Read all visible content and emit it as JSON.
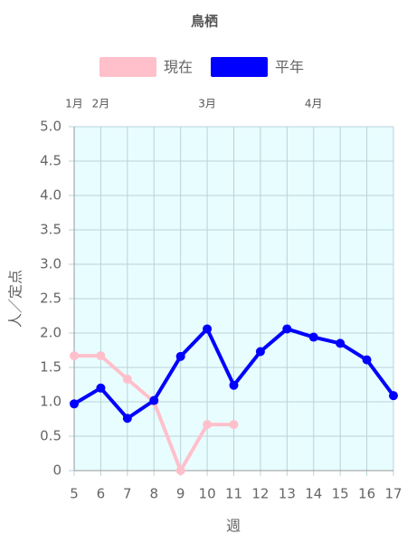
{
  "chart_data": {
    "type": "line",
    "title": "鳥栖",
    "x": [
      5,
      6,
      7,
      8,
      9,
      10,
      11,
      12,
      13,
      14,
      15,
      16,
      17
    ],
    "series": [
      {
        "name": "現在",
        "color": "#ffc0cb",
        "values": [
          1.67,
          1.67,
          1.33,
          1.0,
          0,
          0.67,
          0.67,
          null,
          null,
          null,
          null,
          null,
          null
        ]
      },
      {
        "name": "平年",
        "color": "#0000ff",
        "values": [
          0.97,
          1.2,
          0.76,
          1.02,
          1.66,
          2.06,
          1.24,
          1.73,
          2.06,
          1.94,
          1.85,
          1.61,
          1.09
        ]
      }
    ],
    "xlim": [
      5,
      17
    ],
    "xticks": [
      5,
      6,
      7,
      8,
      9,
      10,
      11,
      12,
      13,
      14,
      15,
      16,
      17
    ],
    "ylim": [
      0,
      5
    ],
    "yticks": [
      0,
      0.5,
      {
        "value": 1,
        "label": "1.0"
      },
      1.5,
      {
        "value": 2,
        "label": "2.0"
      },
      2.5,
      {
        "value": 3,
        "label": "3.0"
      },
      3.5,
      {
        "value": 4,
        "label": "4.0"
      },
      4.5,
      {
        "value": 5,
        "label": "5.0"
      }
    ],
    "top_labels": [
      {
        "x": 5,
        "label": "1月"
      },
      {
        "x": 6,
        "label": "2月"
      },
      {
        "x": 10,
        "label": "3月"
      },
      {
        "x": 14,
        "label": "4月"
      }
    ],
    "xlabel": "週",
    "ylabel": "人／定点",
    "grid": true,
    "legend": "top",
    "background": "#e8fdff"
  }
}
